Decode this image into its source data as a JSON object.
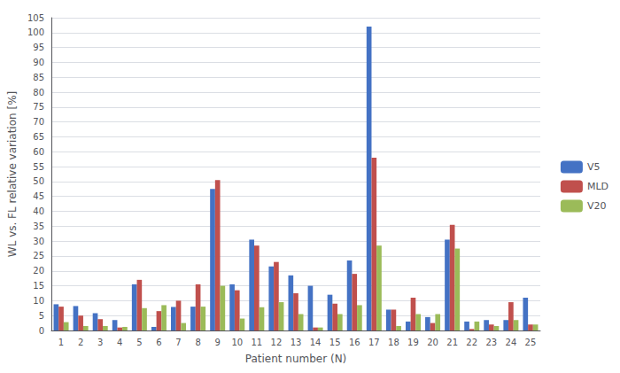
{
  "chart_data": {
    "type": "bar",
    "categories": [
      "1",
      "2",
      "3",
      "4",
      "5",
      "6",
      "7",
      "8",
      "9",
      "10",
      "11",
      "12",
      "13",
      "14",
      "15",
      "16",
      "17",
      "18",
      "19",
      "20",
      "21",
      "22",
      "23",
      "24",
      "25"
    ],
    "series": [
      {
        "name": "V5",
        "color": "#4472C4",
        "values": [
          8.8,
          8.2,
          5.8,
          3.5,
          15.5,
          1.2,
          7.9,
          8.0,
          47.5,
          15.5,
          30.5,
          21.5,
          18.5,
          15.0,
          12.0,
          23.5,
          102.0,
          7.0,
          3.0,
          4.5,
          30.5,
          3.0,
          3.5,
          3.5,
          11.0
        ]
      },
      {
        "name": "MLD",
        "color": "#C0504D",
        "values": [
          8.0,
          5.0,
          3.8,
          1.0,
          17.0,
          6.5,
          10.0,
          15.5,
          50.5,
          13.5,
          28.5,
          23.0,
          12.5,
          1.0,
          9.0,
          19.0,
          58.0,
          7.0,
          11.0,
          2.5,
          35.5,
          0.5,
          2.0,
          9.5,
          2.0
        ]
      },
      {
        "name": "V20",
        "color": "#9BBB59",
        "values": [
          2.8,
          1.5,
          1.5,
          1.2,
          7.5,
          8.5,
          2.5,
          8.0,
          15.0,
          4.0,
          7.8,
          9.5,
          5.5,
          1.0,
          5.5,
          8.5,
          28.5,
          1.5,
          5.5,
          5.5,
          27.5,
          3.0,
          1.5,
          3.5,
          2.0
        ]
      }
    ],
    "xlabel": "Patient number (N)",
    "ylabel": "WL vs. FL relative variation [%]",
    "ylim": [
      0,
      105
    ],
    "yticks": [
      0,
      5,
      10,
      15,
      20,
      25,
      30,
      35,
      40,
      45,
      50,
      55,
      60,
      65,
      70,
      75,
      80,
      85,
      90,
      95,
      100,
      105
    ],
    "grid": true,
    "legend": "right"
  }
}
